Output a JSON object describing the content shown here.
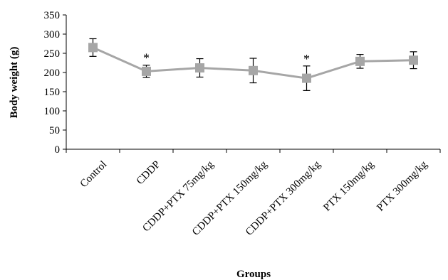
{
  "chart_data": {
    "type": "line",
    "title": "",
    "xlabel": "Groups",
    "ylabel": "Body weight (g)",
    "ylim": [
      0,
      350
    ],
    "yticks": [
      0,
      50,
      100,
      150,
      200,
      250,
      300,
      350
    ],
    "grid": false,
    "legend": "none",
    "categories": [
      "Control",
      "CDDP",
      "CDDP+PTX 75mg/kg",
      "CDDP+PTX 150mg/kg",
      "CDDP+PTX 300mg/kg",
      "PTX 150mg/kg",
      "PTX 300mg/kg"
    ],
    "series": [
      {
        "values": [
          265,
          203,
          212,
          205,
          185,
          229,
          232
        ],
        "error": [
          23,
          16,
          24,
          32,
          32,
          18,
          22
        ],
        "significance": [
          "",
          "*",
          "",
          "",
          "*",
          "",
          ""
        ],
        "color": "#a6a6a6",
        "marker": "square"
      }
    ]
  }
}
